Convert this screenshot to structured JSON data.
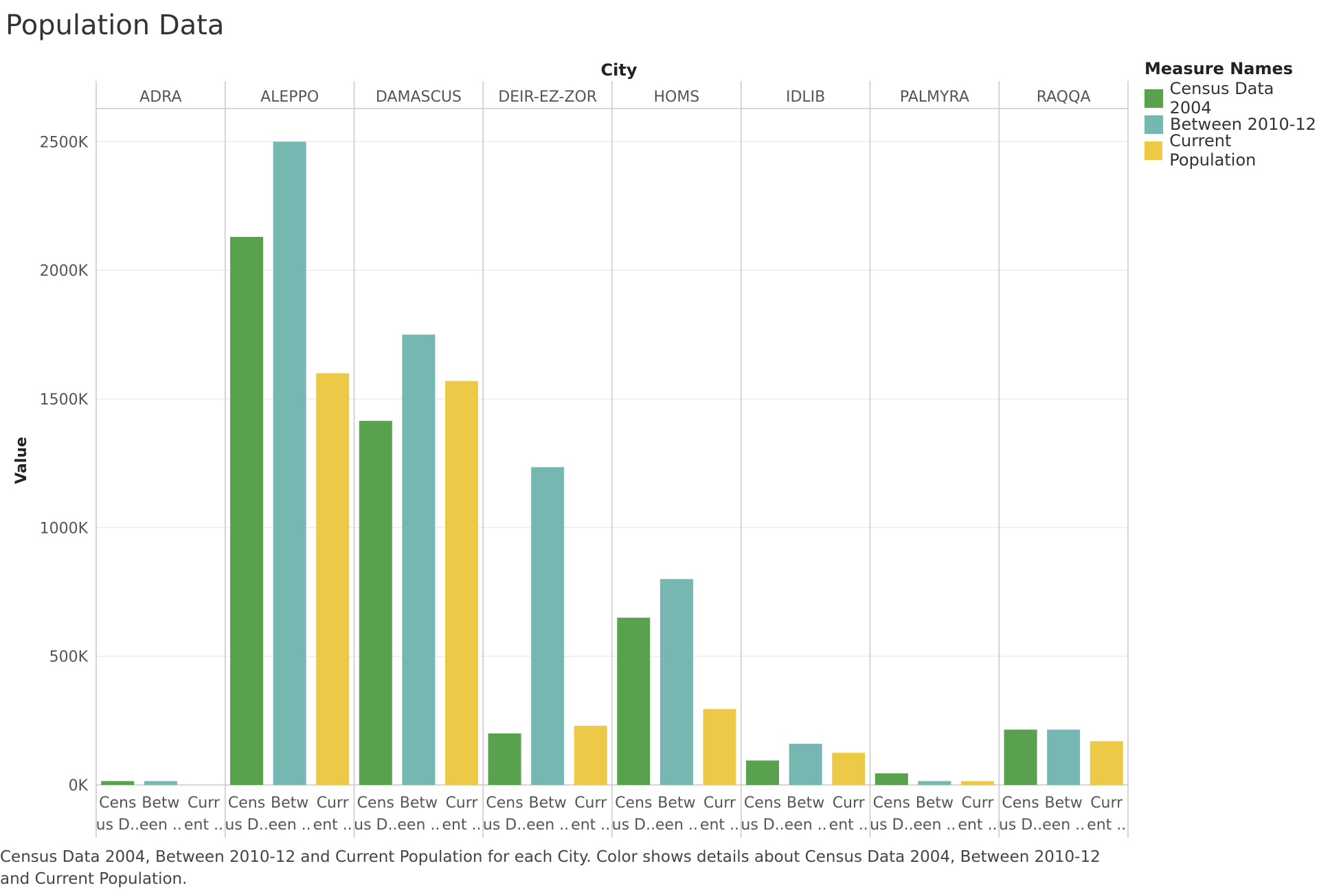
{
  "page": {
    "title": "Population Data",
    "caption": "Census Data 2004, Between 2010-12 and Current Population for each City.  Color shows details about Census Data 2004, Between 2010-12 and Current Population."
  },
  "legend": {
    "title": "Measure Names",
    "items": [
      {
        "label": "Census Data 2004",
        "color": "#59a14f"
      },
      {
        "label": "Between 2010-12",
        "color": "#76b7b2"
      },
      {
        "label": "Current Population",
        "color": "#edc948"
      }
    ]
  },
  "chart_data": {
    "type": "bar",
    "column_header": "City",
    "ylabel": "Value",
    "ylim": [
      0,
      2620
    ],
    "yticks": [
      0,
      500,
      1000,
      1500,
      2000,
      2500
    ],
    "ytick_labels": [
      "0K",
      "500K",
      "1000K",
      "1500K",
      "2000K",
      "2500K"
    ],
    "grid": true,
    "legend_position": "top-right",
    "categories": [
      "ADRA",
      "ALEPPO",
      "DAMASCUS",
      "DEIR-EZ-ZOR",
      "HOMS",
      "IDLIB",
      "PALMYRA",
      "RAQQA"
    ],
    "sub_labels": [
      [
        "Cens",
        "us D.."
      ],
      [
        "Betw",
        "een .."
      ],
      [
        "Curr",
        "ent .."
      ]
    ],
    "series": [
      {
        "name": "Census Data 2004",
        "color": "#59a14f",
        "values": [
          15,
          2130,
          1415,
          200,
          650,
          95,
          45,
          215
        ]
      },
      {
        "name": "Between 2010-12",
        "color": "#76b7b2",
        "values": [
          15,
          2500,
          1750,
          1235,
          800,
          160,
          15,
          215
        ]
      },
      {
        "name": "Current Population",
        "color": "#edc948",
        "values": [
          0,
          1600,
          1570,
          230,
          295,
          125,
          15,
          170
        ]
      }
    ]
  }
}
